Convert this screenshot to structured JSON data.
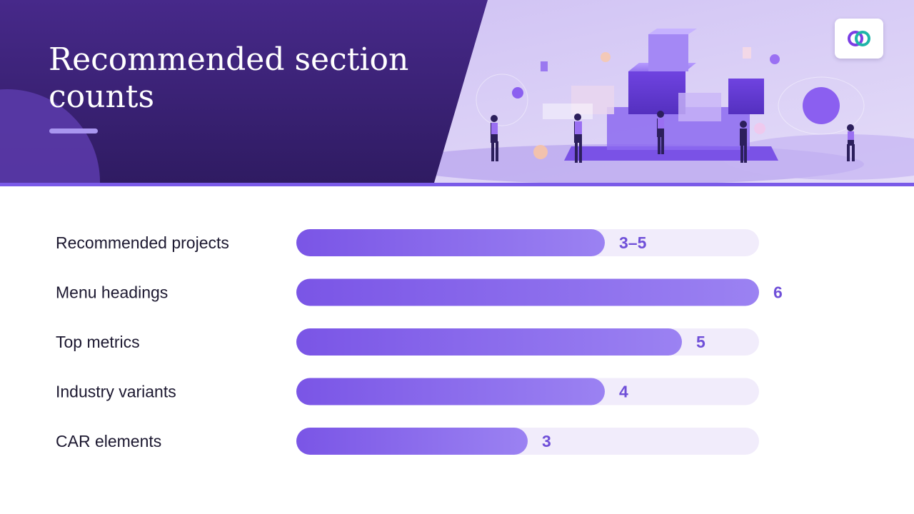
{
  "header": {
    "title": "Recommended section counts",
    "logo": "infinity-loop-logo",
    "illustration": "isometric-cubes-people"
  },
  "colors": {
    "header_bg": "#3b2478",
    "accent": "#7a5ae8",
    "bar_start": "#7a55e6",
    "bar_end": "#9b82f2",
    "track": "#f1ecfb",
    "value_text": "#6f4fd8",
    "label_text": "#1c1830"
  },
  "chart_data": {
    "type": "bar",
    "orientation": "horizontal",
    "categories": [
      "Recommended projects",
      "Menu headings",
      "Top metrics",
      "Industry variants",
      "CAR elements"
    ],
    "values": [
      4,
      6,
      5,
      4,
      3
    ],
    "value_labels": [
      "3–5",
      "6",
      "5",
      "4",
      "3"
    ],
    "xlim": [
      0,
      6
    ],
    "grid": false,
    "legend": "none"
  }
}
